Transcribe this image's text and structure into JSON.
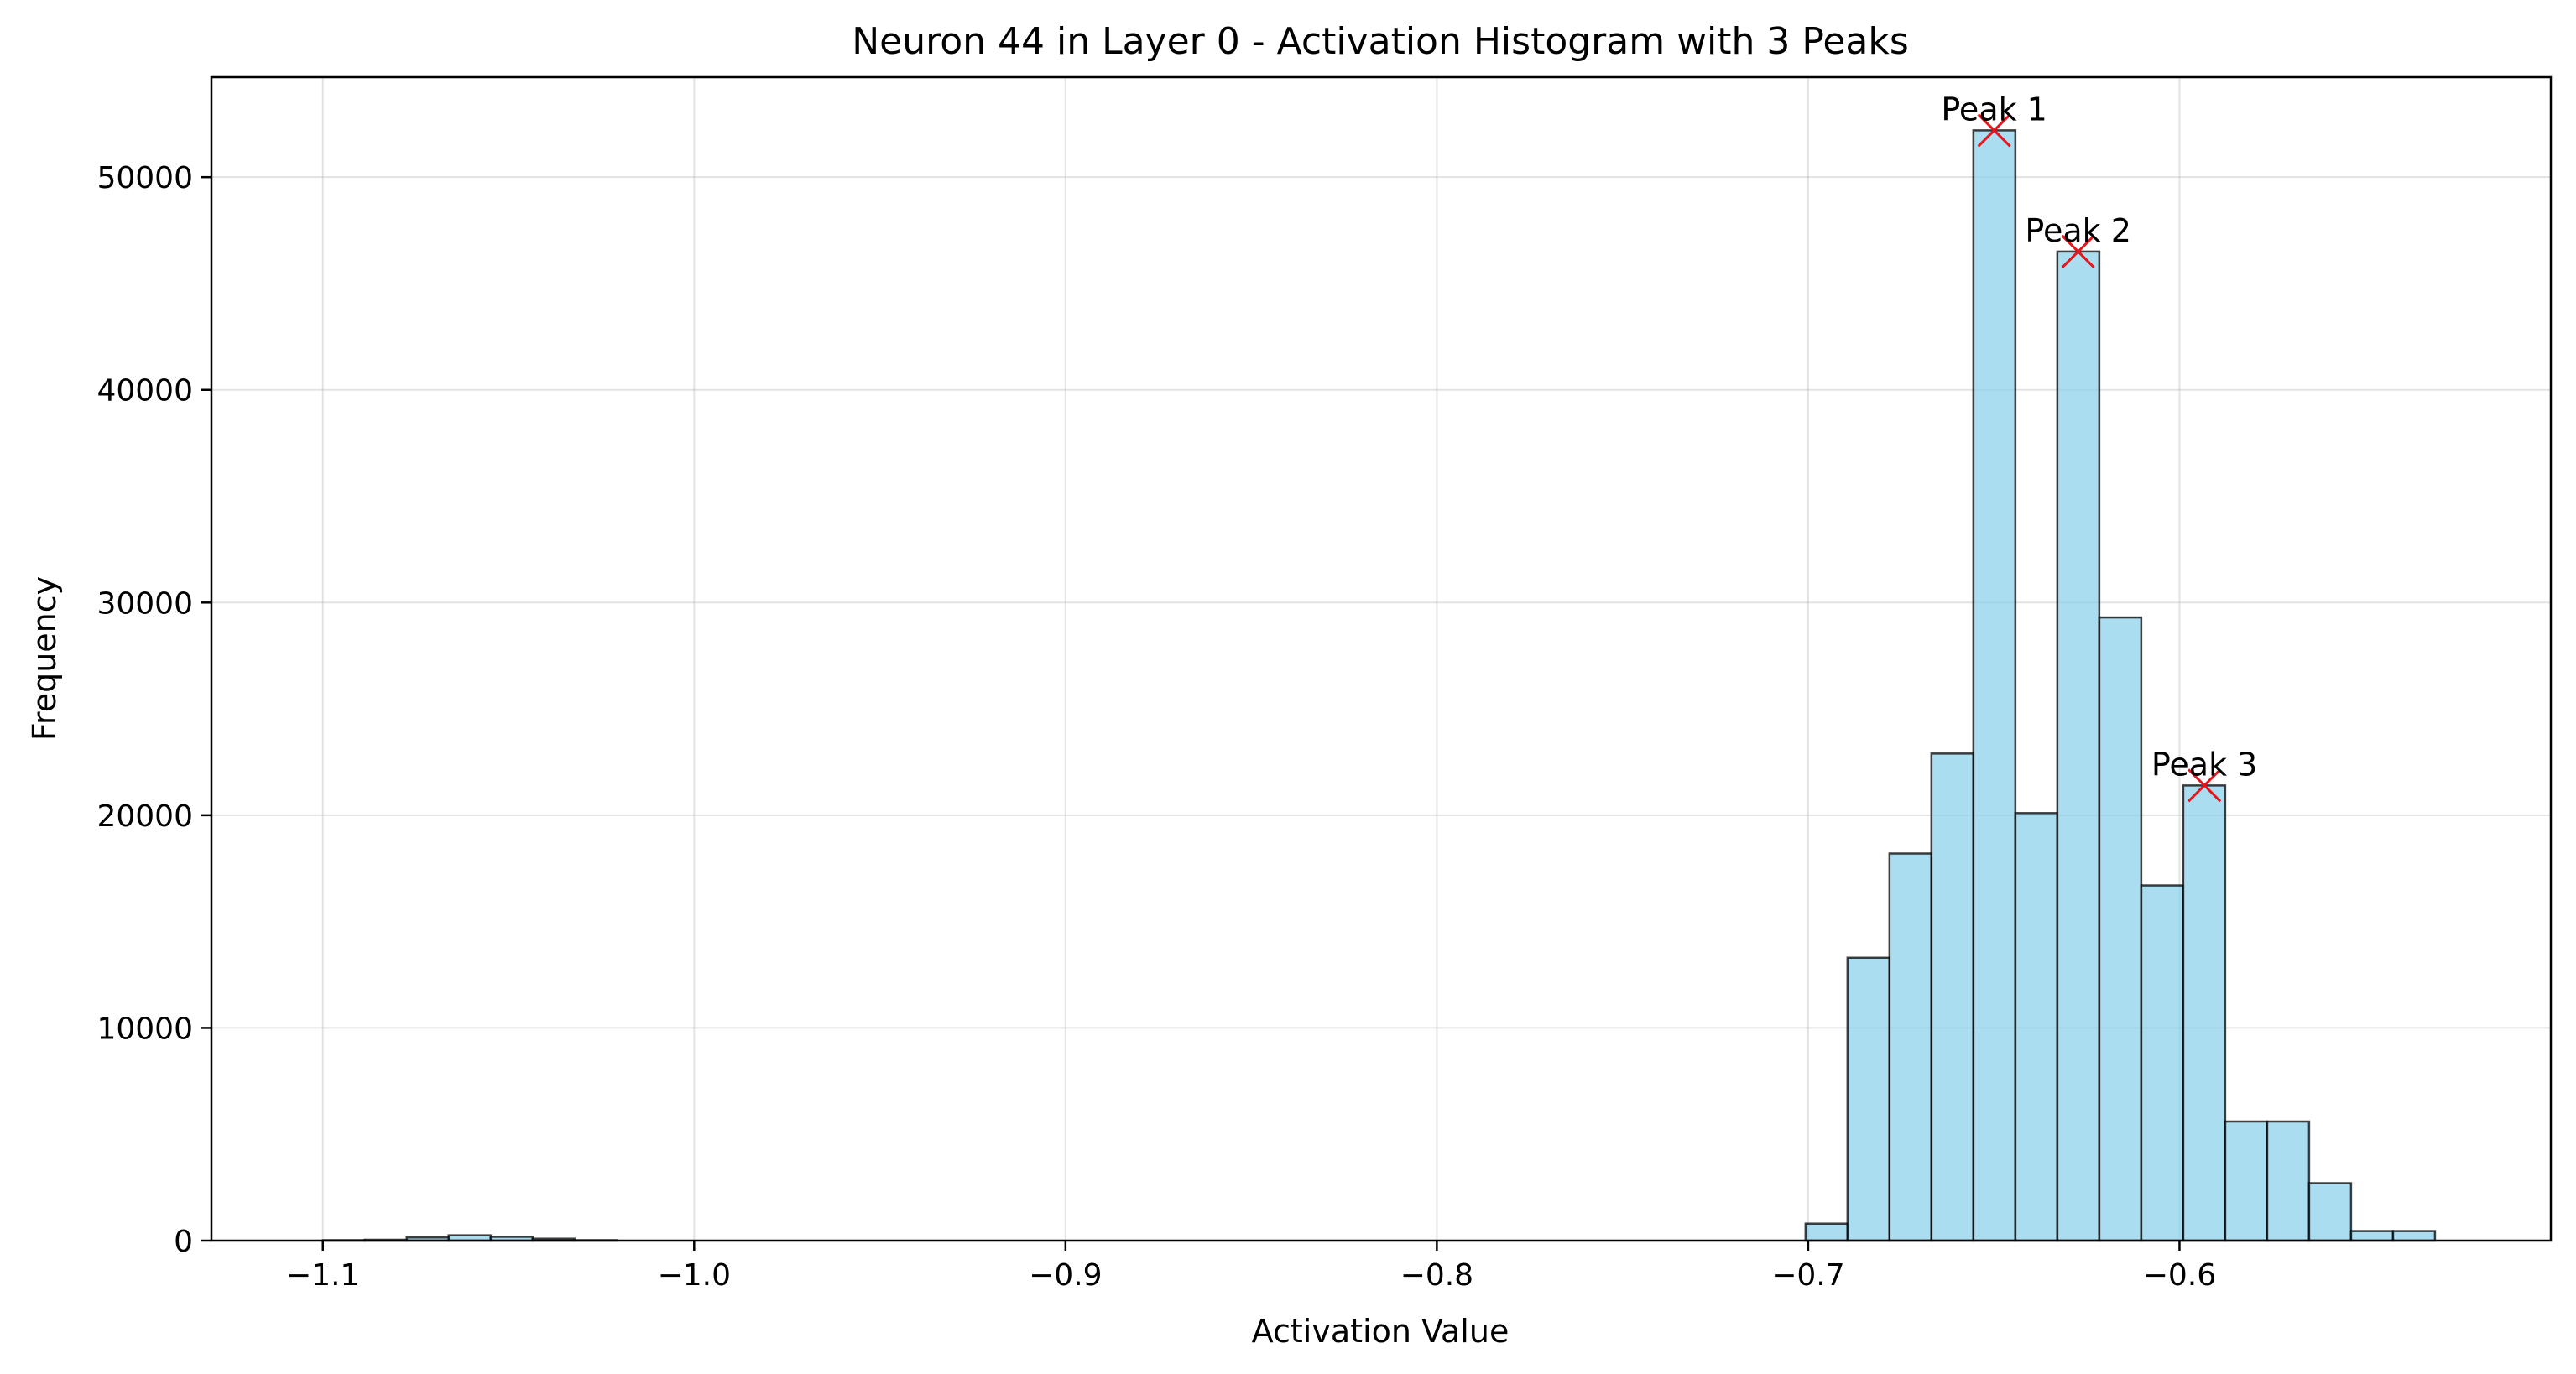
{
  "chart_data": {
    "type": "bar",
    "title": "Neuron 44 in Layer 0 - Activation Histogram with 3 Peaks",
    "xlabel": "Activation Value",
    "ylabel": "Frequency",
    "xlim": [
      -1.13,
      -0.5
    ],
    "ylim": [
      0,
      54700
    ],
    "x_ticks": [
      -1.1,
      -1.0,
      -0.9,
      -0.8,
      -0.7,
      -0.6
    ],
    "x_tick_labels": [
      "−1.1",
      "−1.0",
      "−0.9",
      "−0.8",
      "−0.7",
      "−0.6"
    ],
    "y_ticks": [
      0,
      10000,
      20000,
      30000,
      40000,
      50000
    ],
    "y_tick_labels": [
      "0",
      "10000",
      "20000",
      "30000",
      "40000",
      "50000"
    ],
    "grid": true,
    "bar_color": "#87CEEB",
    "bar_edge_color": "#000000",
    "peak_marker_color": "#e8141b",
    "bins": [
      {
        "x0": -1.1,
        "x1": -1.0887,
        "count": 20
      },
      {
        "x0": -1.0887,
        "x1": -1.0774,
        "count": 40
      },
      {
        "x0": -1.0774,
        "x1": -1.0661,
        "count": 150
      },
      {
        "x0": -1.0661,
        "x1": -1.0548,
        "count": 250
      },
      {
        "x0": -1.0548,
        "x1": -1.0435,
        "count": 180
      },
      {
        "x0": -1.0435,
        "x1": -1.0322,
        "count": 90
      },
      {
        "x0": -1.0322,
        "x1": -1.0209,
        "count": 20
      },
      {
        "x0": -0.7007,
        "x1": -0.6894,
        "count": 800
      },
      {
        "x0": -0.6894,
        "x1": -0.6781,
        "count": 13300
      },
      {
        "x0": -0.6781,
        "x1": -0.6668,
        "count": 18200
      },
      {
        "x0": -0.6668,
        "x1": -0.6555,
        "count": 22900
      },
      {
        "x0": -0.6555,
        "x1": -0.6442,
        "count": 52200
      },
      {
        "x0": -0.6442,
        "x1": -0.6329,
        "count": 20100
      },
      {
        "x0": -0.6329,
        "x1": -0.6216,
        "count": 46500
      },
      {
        "x0": -0.6216,
        "x1": -0.6103,
        "count": 29300
      },
      {
        "x0": -0.6103,
        "x1": -0.599,
        "count": 16700
      },
      {
        "x0": -0.599,
        "x1": -0.5877,
        "count": 21400
      },
      {
        "x0": -0.5877,
        "x1": -0.5764,
        "count": 5600
      },
      {
        "x0": -0.5764,
        "x1": -0.5651,
        "count": 5600
      },
      {
        "x0": -0.5651,
        "x1": -0.5538,
        "count": 2700
      },
      {
        "x0": -0.5538,
        "x1": -0.5425,
        "count": 450
      },
      {
        "x0": -0.5425,
        "x1": -0.5312,
        "count": 450
      }
    ],
    "peaks": [
      {
        "label": "Peak 1",
        "x": -0.6499,
        "y": 52200
      },
      {
        "label": "Peak 2",
        "x": -0.6273,
        "y": 46500
      },
      {
        "label": "Peak 3",
        "x": -0.5933,
        "y": 21400
      }
    ]
  }
}
